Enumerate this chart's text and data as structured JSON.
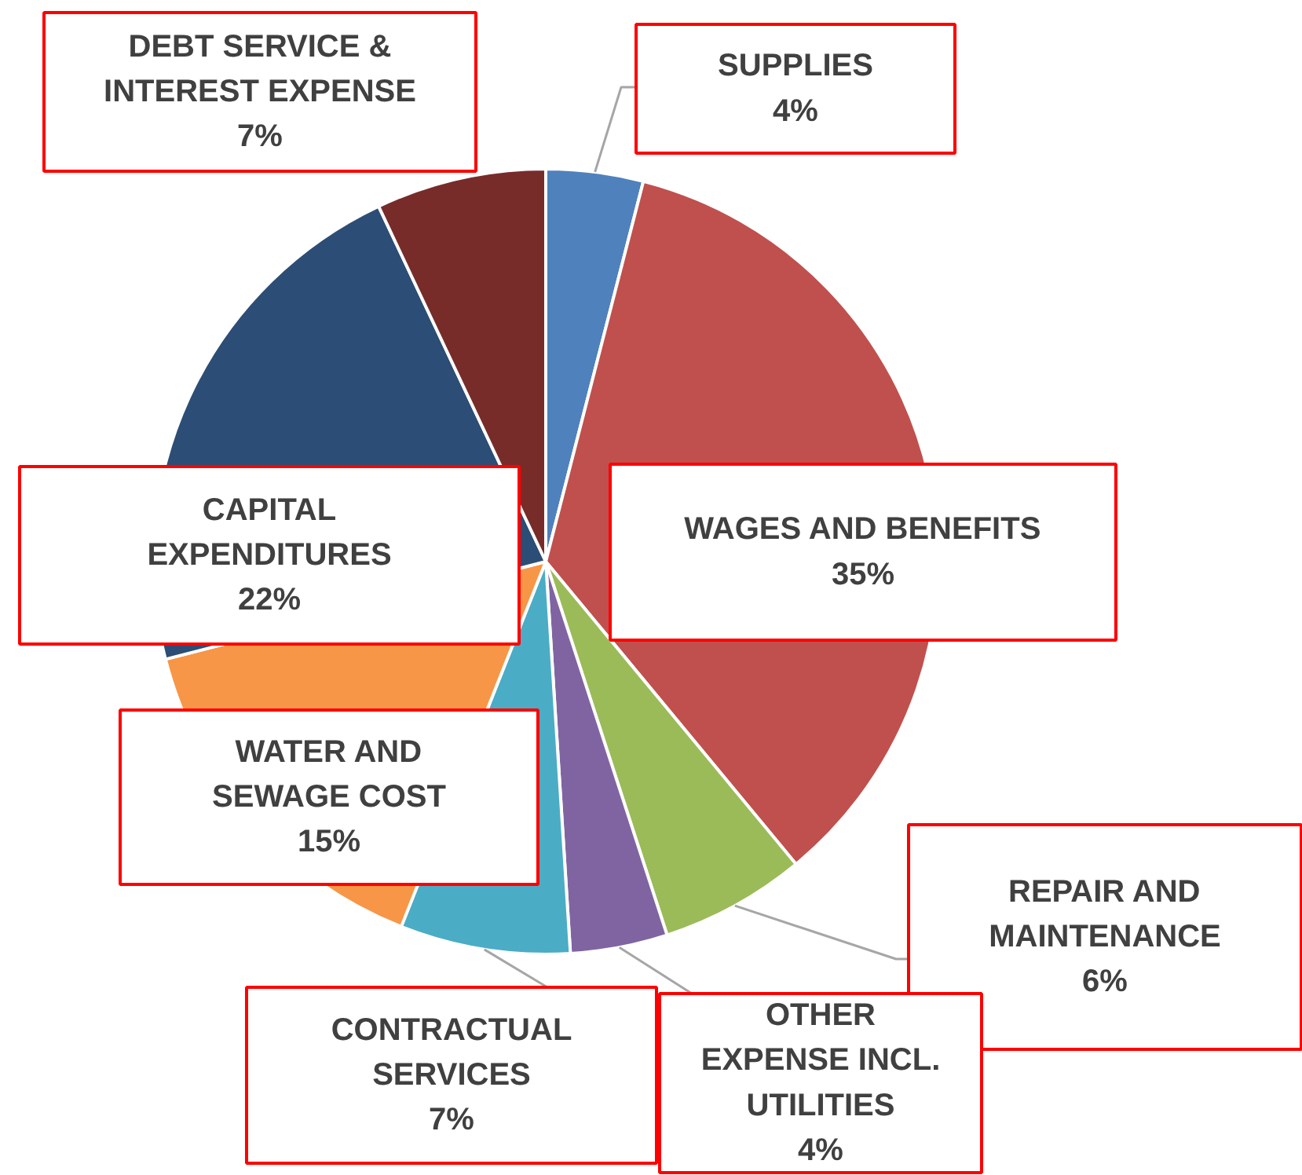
{
  "chart_data": {
    "type": "pie",
    "categories": [
      "SUPPLIES",
      "WAGES AND BENEFITS",
      "REPAIR AND\nMAINTENANCE",
      "OTHER\nEXPENSE INCL.\nUTILITIES",
      "CONTRACTUAL\nSERVICES",
      "WATER AND\nSEWAGE COST",
      "CAPITAL\nEXPENDITURES",
      "DEBT SERVICE &\nINTEREST EXPENSE"
    ],
    "values": [
      4,
      35,
      6,
      4,
      7,
      15,
      22,
      7
    ],
    "value_labels": [
      "4%",
      "35%",
      "6%",
      "4%",
      "7%",
      "15%",
      "22%",
      "7%"
    ],
    "colors": [
      "#4f81bd",
      "#c0504d",
      "#9bbb59",
      "#8064a2",
      "#4bacc6",
      "#f79646",
      "#2c4d75",
      "#772c2a"
    ]
  }
}
